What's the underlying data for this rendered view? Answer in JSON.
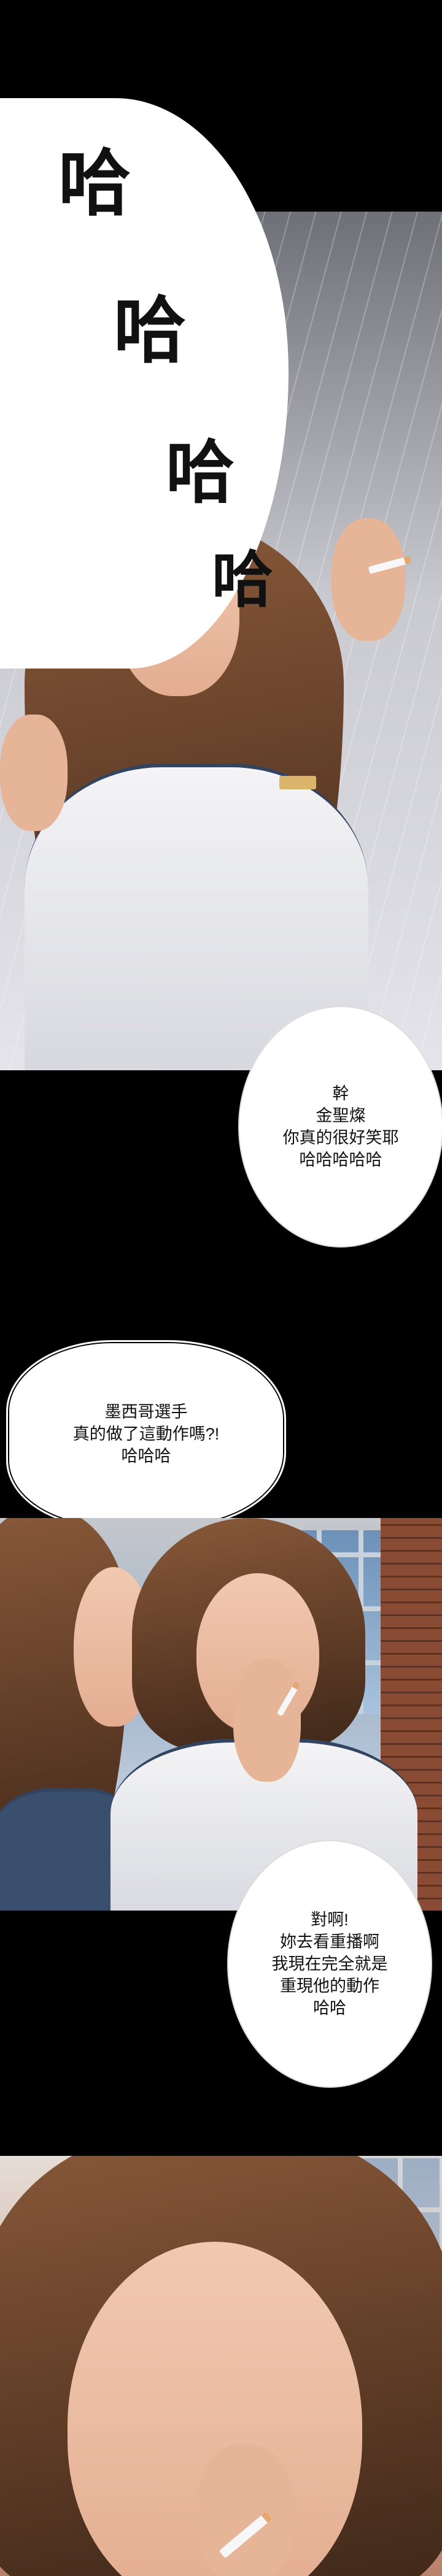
{
  "sfx": {
    "chars": [
      "哈",
      "哈",
      "哈",
      "哈"
    ]
  },
  "bubbles": {
    "b1": {
      "lines": [
        "幹",
        "金聖燦",
        "你真的很好笑耶",
        "哈哈哈哈哈"
      ]
    },
    "b2": {
      "lines": [
        "墨西哥選手",
        "真的做了這動作嗎?!",
        "哈哈哈"
      ]
    },
    "b3": {
      "lines": [
        "對啊!",
        "妳去看重播啊",
        "我現在完全就是",
        "重現他的動作",
        "哈哈"
      ]
    }
  },
  "colors": {
    "background": "#000000",
    "bubble": "#ffffff",
    "text": "#111111",
    "uniform_trim": "#32445f"
  }
}
